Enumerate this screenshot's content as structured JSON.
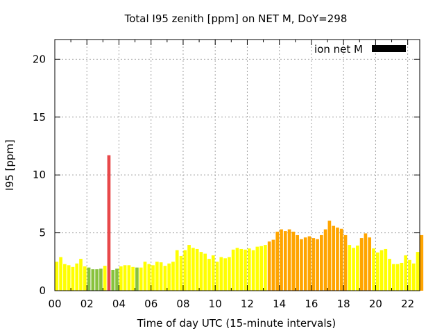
{
  "chart_data": {
    "type": "bar",
    "title": "Total I95 zenith [ppm] on NET M, DoY=298",
    "xlabel": "Time of day UTC (15-minute intervals)",
    "ylabel": "I95 [ppm]",
    "xlim": [
      0,
      22.75
    ],
    "ylim": [
      0,
      21.7
    ],
    "xticks": [
      "00",
      "02",
      "04",
      "06",
      "08",
      "10",
      "12",
      "14",
      "16",
      "18",
      "20",
      "22"
    ],
    "xtick_values": [
      0,
      2,
      4,
      6,
      8,
      10,
      12,
      14,
      16,
      18,
      20,
      22
    ],
    "yticks": [
      "0",
      "5",
      "10",
      "15",
      "20"
    ],
    "ytick_values": [
      0,
      5,
      10,
      15,
      20
    ],
    "grid": true,
    "legend": {
      "label": "ion net M",
      "color": "#000000",
      "placement": "top-right"
    },
    "interval_hours": 0.25,
    "colors": {
      "y": "#ffff00",
      "g": "#88c23c",
      "r": "#e8484a",
      "o": "#ffa500"
    },
    "values": [
      2.5,
      2.9,
      2.3,
      2.2,
      2.05,
      2.35,
      2.75,
      2.1,
      2.0,
      1.85,
      1.85,
      1.9,
      2.15,
      11.7,
      1.8,
      1.9,
      2.1,
      2.2,
      2.2,
      2.05,
      2.0,
      2.0,
      2.5,
      2.3,
      2.2,
      2.5,
      2.45,
      2.15,
      2.35,
      2.5,
      3.5,
      3.0,
      3.5,
      3.95,
      3.7,
      3.6,
      3.35,
      3.2,
      2.75,
      3.05,
      2.5,
      2.9,
      2.8,
      2.9,
      3.55,
      3.7,
      3.6,
      3.55,
      3.65,
      3.5,
      3.8,
      3.85,
      3.95,
      4.25,
      4.4,
      5.1,
      5.3,
      5.15,
      5.3,
      5.1,
      4.8,
      4.45,
      4.6,
      4.7,
      4.55,
      4.45,
      4.8,
      5.3,
      6.05,
      5.6,
      5.45,
      5.35,
      4.8,
      3.95,
      3.7,
      3.9,
      4.55,
      4.95,
      4.6,
      3.65,
      3.3,
      3.5,
      3.6,
      2.75,
      2.3,
      2.3,
      2.4,
      3.05,
      2.65,
      2.35,
      3.35,
      4.8
    ],
    "bar_colors": [
      "y",
      "y",
      "y",
      "y",
      "y",
      "y",
      "y",
      "y",
      "g",
      "g",
      "g",
      "g",
      "y",
      "r",
      "g",
      "g",
      "y",
      "y",
      "y",
      "y",
      "g",
      "y",
      "y",
      "y",
      "y",
      "y",
      "y",
      "y",
      "y",
      "y",
      "y",
      "y",
      "y",
      "y",
      "y",
      "y",
      "y",
      "y",
      "y",
      "y",
      "y",
      "y",
      "y",
      "y",
      "y",
      "y",
      "y",
      "y",
      "y",
      "y",
      "y",
      "y",
      "y",
      "o",
      "o",
      "o",
      "o",
      "o",
      "o",
      "o",
      "o",
      "o",
      "o",
      "o",
      "o",
      "o",
      "o",
      "o",
      "o",
      "o",
      "o",
      "o",
      "o",
      "y",
      "y",
      "y",
      "o",
      "o",
      "o",
      "y",
      "y",
      "y",
      "y",
      "y",
      "y",
      "y",
      "y",
      "y",
      "y",
      "y",
      "y",
      "o"
    ]
  }
}
